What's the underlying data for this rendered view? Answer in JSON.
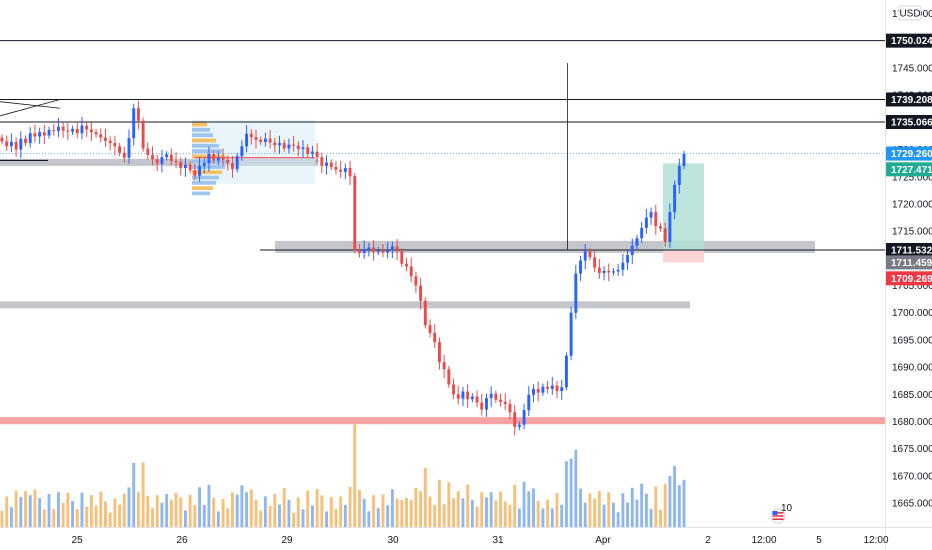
{
  "chart_data": {
    "type": "candlestick",
    "currency": "USD",
    "y_ticks": [
      "1755.000",
      "1750.000",
      "1745.000",
      "1740.000",
      "1735.000",
      "1730.000",
      "1725.000",
      "1720.000",
      "1715.000",
      "1710.000",
      "1705.000",
      "1700.000",
      "1695.000",
      "1690.000",
      "1685.000",
      "1680.000",
      "1675.000",
      "1670.000",
      "1665.000"
    ],
    "x_ticks": [
      "25",
      "26",
      "29",
      "30",
      "31",
      "Apr",
      "2",
      "12:00",
      "5",
      "12:00"
    ],
    "ylim": [
      1660.6,
      1757.5
    ],
    "horizontal_lines": [
      1750.024,
      1739.208,
      1735.066,
      1711.532
    ],
    "price_tags": [
      {
        "label": "1750.024",
        "value": 1750.024,
        "color": "#131722"
      },
      {
        "label": "1739.208",
        "value": 1739.208,
        "color": "#131722"
      },
      {
        "label": "1735.066",
        "value": 1735.066,
        "color": "#131722"
      },
      {
        "label": "1729.260",
        "value": 1729.26,
        "color": "#2196f3"
      },
      {
        "label": "1727.471",
        "value": 1727.471,
        "color": "#22ab94"
      },
      {
        "label": "1711.532",
        "value": 1711.532,
        "color": "#131722"
      },
      {
        "label": "1711.459",
        "value": 1711.459,
        "color": "#787b86"
      },
      {
        "label": "1709.269",
        "value": 1709.269,
        "color": "#f23645"
      }
    ],
    "zones": [
      {
        "from": 1727.0,
        "to": 1728.3,
        "color": "#c4c6cc"
      },
      {
        "from": 1711.0,
        "to": 1713.2,
        "color": "#c4c6cc"
      },
      {
        "from": 1700.8,
        "to": 1702.1,
        "color": "#c4c6cc"
      },
      {
        "from": 1679.5,
        "to": 1680.8,
        "color": "#f7a3a3"
      }
    ],
    "position": {
      "entry": 1711.459,
      "target": 1727.471,
      "stop": 1709.269
    },
    "candle_closes": [
      1731.5,
      1730.6,
      1731.4,
      1730.0,
      1732.0,
      1731.2,
      1733.0,
      1732.4,
      1733.2,
      1732.6,
      1733.6,
      1733.4,
      1734.2,
      1733.5,
      1733.3,
      1733.8,
      1733.0,
      1734.4,
      1733.7,
      1733.2,
      1732.8,
      1732.2,
      1731.6,
      1731.2,
      1730.6,
      1729.4,
      1728.5,
      1732.1,
      1737.6,
      1735.3,
      1730.2,
      1729.0,
      1728.2,
      1727.4,
      1728.6,
      1729.1,
      1727.9,
      1727.7,
      1726.6,
      1727.2,
      1726.2,
      1725.2,
      1727.0,
      1727.5,
      1729.2,
      1728.0,
      1728.6,
      1728.1,
      1727.5,
      1726.4,
      1728.8,
      1730.6,
      1732.9,
      1732.3,
      1731.8,
      1731.4,
      1732.0,
      1731.3,
      1730.8,
      1731.2,
      1730.2,
      1730.9,
      1730.7,
      1730.1,
      1730.4,
      1729.2,
      1729.6,
      1728.6,
      1727.0,
      1727.6,
      1726.8,
      1726.3,
      1725.9,
      1726.6,
      1725.1,
      1711.5,
      1711.0,
      1711.7,
      1712.0,
      1711.2,
      1711.5,
      1711.1,
      1711.4,
      1712.2,
      1711.3,
      1709.0,
      1708.5,
      1706.7,
      1705.0,
      1702.2,
      1697.7,
      1696.3,
      1694.6,
      1690.9,
      1689.6,
      1686.8,
      1685.0,
      1684.2,
      1685.5,
      1684.1,
      1684.6,
      1683.5,
      1682.2,
      1684.3,
      1685.1,
      1684.0,
      1683.6,
      1683.2,
      1681.7,
      1679.0,
      1679.4,
      1682.1,
      1684.9,
      1686.0,
      1685.3,
      1686.4,
      1686.0,
      1686.6,
      1685.6,
      1686.3,
      1692.1,
      1700.0,
      1707.2,
      1709.6,
      1711.3,
      1710.2,
      1708.3,
      1707.3,
      1707.7,
      1707.4,
      1707.6,
      1707.9,
      1709.2,
      1710.6,
      1712.3,
      1713.7,
      1715.6,
      1717.5,
      1718.5,
      1715.9,
      1715.5,
      1713.0,
      1718.5,
      1723.5,
      1727.0,
      1729.2
    ]
  }
}
